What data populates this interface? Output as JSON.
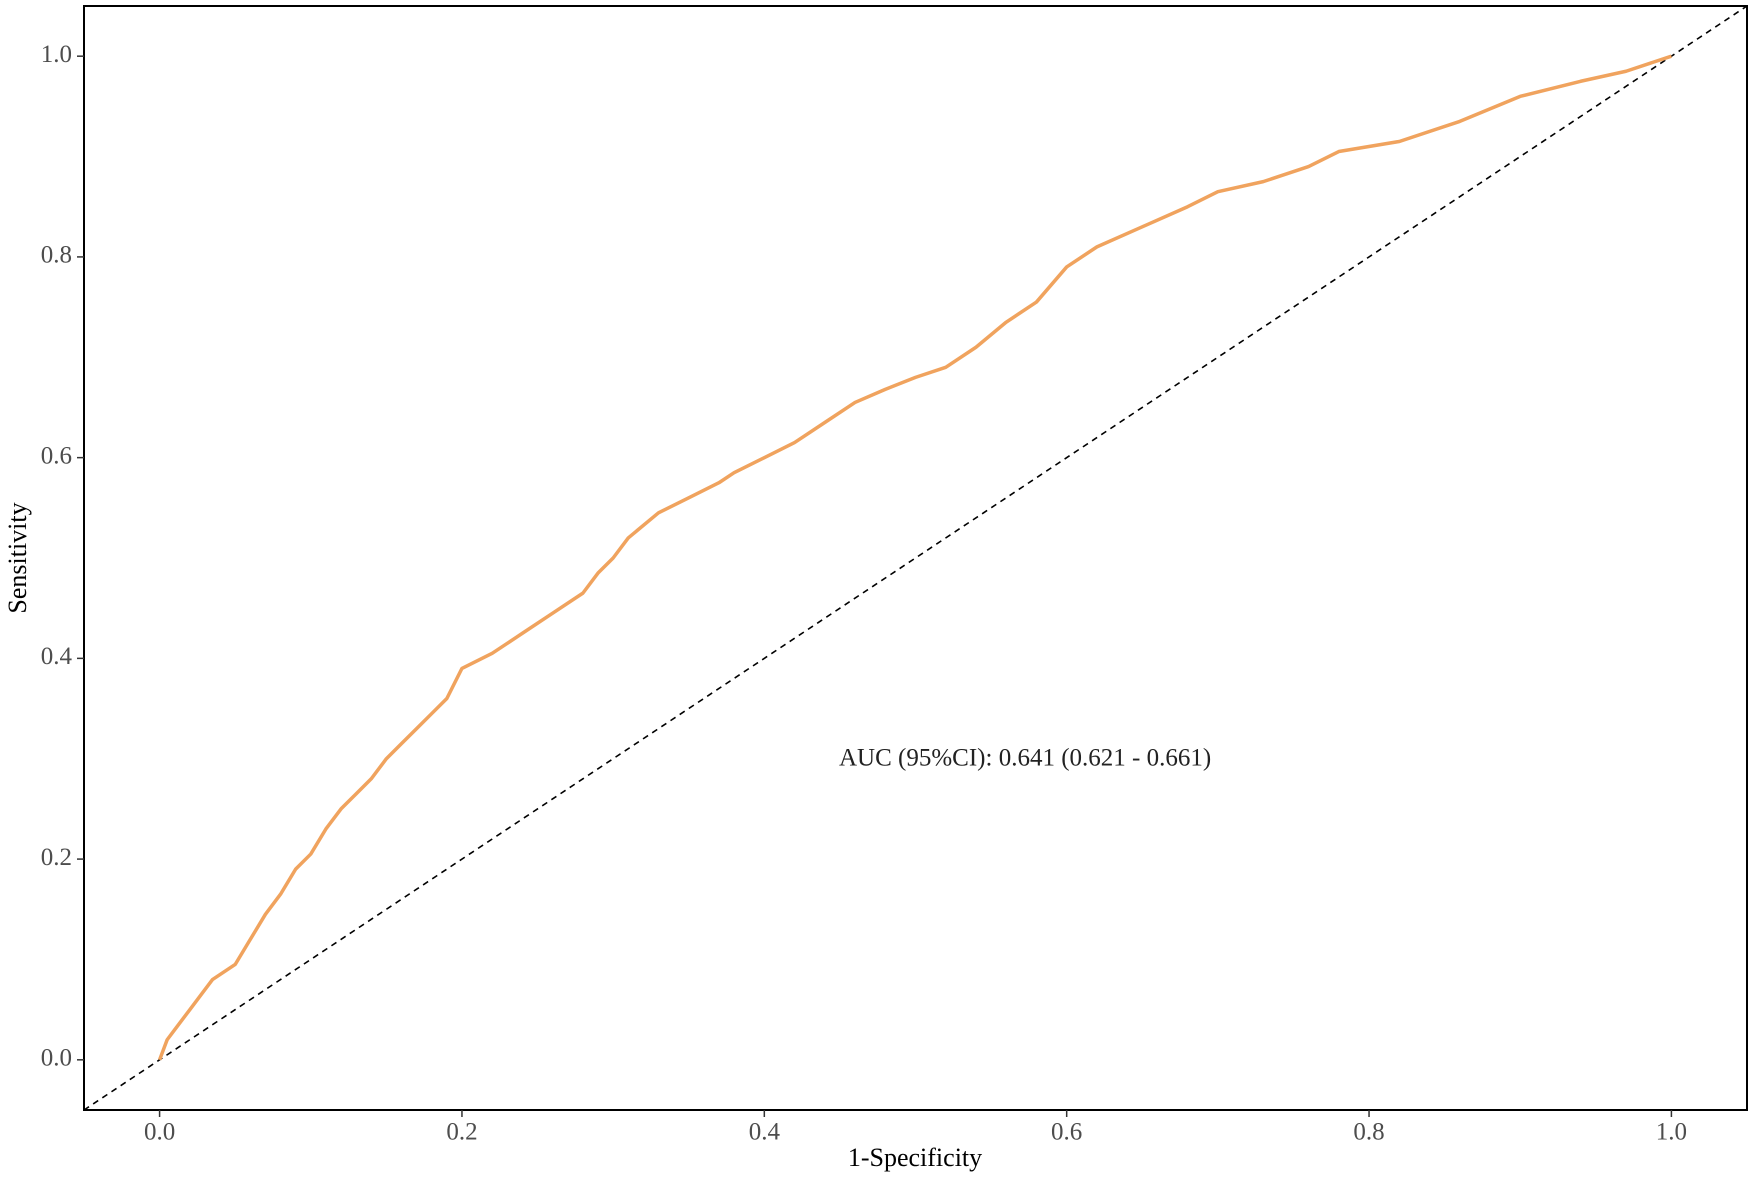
{
  "chart_data": {
    "type": "line",
    "x_label": "1-Specificity",
    "y_label": "Sensitivity",
    "annotation": "AUC (95%CI): 0.641 (0.621 - 0.661)",
    "color": "#f0a35e",
    "x": [
      0,
      0.005,
      0.01,
      0.02,
      0.03,
      0.035,
      0.05,
      0.06,
      0.07,
      0.08,
      0.09,
      0.1,
      0.11,
      0.12,
      0.13,
      0.14,
      0.15,
      0.16,
      0.17,
      0.18,
      0.19,
      0.2,
      0.22,
      0.24,
      0.26,
      0.28,
      0.29,
      0.3,
      0.31,
      0.33,
      0.35,
      0.37,
      0.38,
      0.4,
      0.42,
      0.44,
      0.46,
      0.48,
      0.5,
      0.52,
      0.54,
      0.56,
      0.58,
      0.6,
      0.62,
      0.65,
      0.68,
      0.7,
      0.73,
      0.76,
      0.78,
      0.82,
      0.86,
      0.9,
      0.94,
      0.97,
      1.0
    ],
    "values": [
      0,
      0.02,
      0.03,
      0.05,
      0.07,
      0.08,
      0.095,
      0.12,
      0.145,
      0.165,
      0.19,
      0.205,
      0.23,
      0.25,
      0.265,
      0.28,
      0.3,
      0.315,
      0.33,
      0.345,
      0.36,
      0.39,
      0.405,
      0.425,
      0.445,
      0.465,
      0.485,
      0.5,
      0.52,
      0.545,
      0.56,
      0.575,
      0.585,
      0.6,
      0.615,
      0.635,
      0.655,
      0.668,
      0.68,
      0.69,
      0.71,
      0.735,
      0.755,
      0.79,
      0.81,
      0.83,
      0.85,
      0.865,
      0.875,
      0.89,
      0.905,
      0.915,
      0.935,
      0.96,
      0.975,
      0.985,
      1.0
    ],
    "xlim": [
      -0.05,
      1.05
    ],
    "ylim": [
      -0.05,
      1.05
    ],
    "xticks": [
      {
        "value": 0,
        "label": "0.0"
      },
      0.2,
      0.4,
      0.6,
      0.8,
      {
        "value": 1,
        "label": "1.0"
      }
    ],
    "yticks": [
      {
        "value": 0,
        "label": "0.0"
      },
      0.2,
      0.4,
      0.6,
      0.8,
      {
        "value": 1,
        "label": "1.0"
      }
    ],
    "grid": false,
    "diagonal": true
  }
}
